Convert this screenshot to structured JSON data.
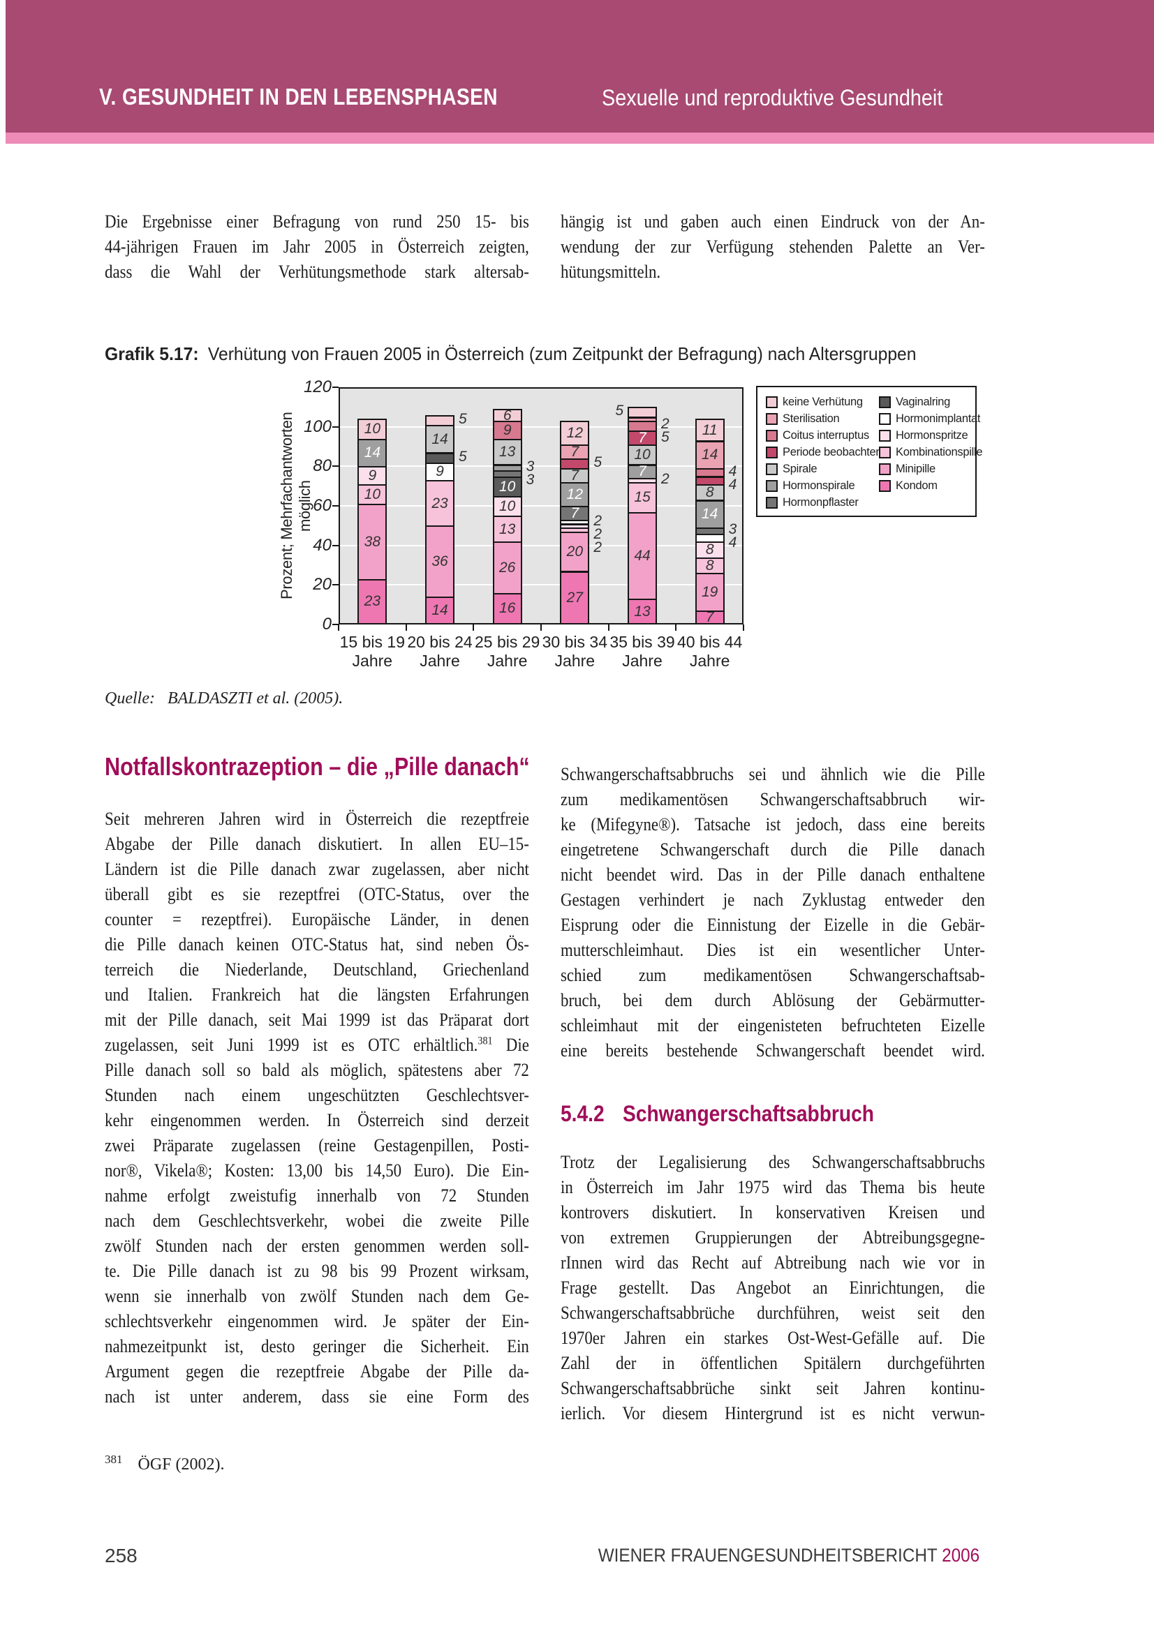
{
  "header": {
    "left": "V. GESUNDHEIT IN DEN LEBENSPHASEN",
    "right": "Sexuelle und reproduktive Gesundheit"
  },
  "colors": {
    "header_band": "#a84a72",
    "header_stripe": "#ee8cb7",
    "heading_magenta": "#a00e59",
    "plot_background": "#e4e4e4"
  },
  "intro": {
    "left_lines": [
      "Die Ergebnisse einer Befragung von rund 250 15- bis",
      "44-jährigen Frauen im Jahr 2005 in Österreich zeigten,",
      "dass die Wahl der Verhütungsmethode stark altersab-"
    ],
    "right_lines": [
      "hängig ist und gaben auch einen Eindruck von der An-",
      "wendung der zur Verfügung stehenden Palette an Ver-",
      "hütungsmitteln."
    ],
    "right_last_ragged": true
  },
  "figure": {
    "caption_label": "Grafik 5.17:",
    "caption_text": "Verhütung von Frauen 2005 in Österreich (zum Zeitpunkt der Befragung) nach Altersgruppen",
    "source_label": "Quelle:",
    "source_text": "BALDASZTI et al. (2005)."
  },
  "chart_data": {
    "type": "bar",
    "stacked": true,
    "title": "Verhütung von Frauen 2005 in Österreich (zum Zeitpunkt der Befragung) nach Altersgruppen",
    "ylabel": "Prozent; Mehrfachantworten möglich",
    "ylim": [
      0,
      120
    ],
    "yticks": [
      0,
      20,
      40,
      60,
      80,
      100,
      120
    ],
    "grid": true,
    "legend_position": "right-box",
    "x_labels": [
      {
        "line1": "15 bis 19",
        "line2": "Jahre"
      },
      {
        "line1": "20 bis 24",
        "line2": "Jahre"
      },
      {
        "line1": "25 bis 29",
        "line2": "Jahre"
      },
      {
        "line1": "30 bis 34",
        "line2": "Jahre"
      },
      {
        "line1": "35 bis 39",
        "line2": "Jahre"
      },
      {
        "line1": "40 bis 44",
        "line2": "Jahre"
      }
    ],
    "legend": [
      {
        "label": "keine Verhütung",
        "color": "#f3cdd5"
      },
      {
        "label": "Sterilisation",
        "color": "#e9a3b2"
      },
      {
        "label": "Coitus interruptus",
        "color": "#d7798f"
      },
      {
        "label": "Periode beobachten",
        "color": "#c2496b"
      },
      {
        "label": "Spirale",
        "color": "#c9c9c9"
      },
      {
        "label": "Hormonspirale",
        "color": "#9f9f9f"
      },
      {
        "label": "Hormonpflaster",
        "color": "#757575"
      },
      {
        "label": "Vaginalring",
        "color": "#5a5a5a"
      },
      {
        "label": "Hormonimplantat",
        "color": "#ffffff"
      },
      {
        "label": "Hormonspritze",
        "color": "#fbdfeb"
      },
      {
        "label": "Kombinationspille",
        "color": "#f7c3da"
      },
      {
        "label": "Minipille",
        "color": "#f2a2c8"
      },
      {
        "label": "Kondom",
        "color": "#ee77b2"
      }
    ],
    "bars": [
      {
        "age_group": "15 bis 19 Jahre",
        "segments": [
          {
            "category": "Kondom",
            "value": 23,
            "color": "#ee77b2",
            "label": "inside"
          },
          {
            "category": "Minipille",
            "value": 38,
            "color": "#f2a2c8",
            "label": "inside"
          },
          {
            "category": "Kombinationspille",
            "value": 10,
            "color": "#f7c3da",
            "label": "inside"
          },
          {
            "category": "Hormonspritze",
            "value": 9,
            "color": "#fbdfeb",
            "label": "inside"
          },
          {
            "category": "Hormonspirale",
            "value": 14,
            "color": "#9f9f9f",
            "label": "inside",
            "label_color": "#ffffff"
          },
          {
            "category": "keine Verhütung",
            "value": 10,
            "color": "#f3cdd5",
            "label": "inside"
          }
        ]
      },
      {
        "age_group": "20 bis 24 Jahre",
        "segments": [
          {
            "category": "Kondom",
            "value": 14,
            "color": "#ee77b2",
            "label": "inside"
          },
          {
            "category": "Minipille",
            "value": 36,
            "color": "#f2a2c8",
            "label": "inside"
          },
          {
            "category": "Kombinationspille",
            "value": 23,
            "color": "#f7c3da",
            "label": "inside"
          },
          {
            "category": "Hormonimplantat",
            "value": 9,
            "color": "#ffffff",
            "label": "inside"
          },
          {
            "category": "Vaginalring",
            "value": 5,
            "color": "#5a5a5a",
            "label": "right"
          },
          {
            "category": "Spirale",
            "value": 14,
            "color": "#c9c9c9",
            "label": "inside"
          },
          {
            "category": "keine Verhütung",
            "value": 5,
            "color": "#f3cdd5",
            "label": "right"
          }
        ]
      },
      {
        "age_group": "25 bis 29 Jahre",
        "segments": [
          {
            "category": "Kondom",
            "value": 16,
            "color": "#ee77b2",
            "label": "inside"
          },
          {
            "category": "Minipille",
            "value": 26,
            "color": "#f2a2c8",
            "label": "inside"
          },
          {
            "category": "Kombinationspille",
            "value": 13,
            "color": "#f7c3da",
            "label": "inside"
          },
          {
            "category": "Hormonspritze",
            "value": 10,
            "color": "#fbdfeb",
            "label": "inside"
          },
          {
            "category": "Vaginalring",
            "value": 10,
            "color": "#5a5a5a",
            "label": "inside",
            "label_color": "#ffffff"
          },
          {
            "category": "Hormonpflaster",
            "value": 3,
            "color": "#757575",
            "label": "right"
          },
          {
            "category": "Hormonspirale",
            "value": 3,
            "color": "#9f9f9f",
            "label": "right"
          },
          {
            "category": "Spirale",
            "value": 13,
            "color": "#c9c9c9",
            "label": "inside"
          },
          {
            "category": "Coitus interruptus",
            "value": 9,
            "color": "#d7798f",
            "label": "inside"
          },
          {
            "category": "keine Verhütung",
            "value": 6,
            "color": "#f3cdd5",
            "label": "inside"
          }
        ]
      },
      {
        "age_group": "30 bis 34 Jahre",
        "segments": [
          {
            "category": "Kondom",
            "value": 27,
            "color": "#ee77b2",
            "label": "inside"
          },
          {
            "category": "Minipille",
            "value": 20,
            "color": "#f2a2c8",
            "label": "inside"
          },
          {
            "category": "Kombinationspille",
            "value": 2,
            "color": "#f7c3da",
            "label": "right"
          },
          {
            "category": "Hormonspritze",
            "value": 2,
            "color": "#fbdfeb",
            "label": "right"
          },
          {
            "category": "Hormonimplantat",
            "value": 2,
            "color": "#ffffff",
            "label": "right"
          },
          {
            "category": "Hormonpflaster",
            "value": 7,
            "color": "#757575",
            "label": "inside",
            "label_color": "#ffffff"
          },
          {
            "category": "Hormonspirale",
            "value": 12,
            "color": "#9f9f9f",
            "label": "inside",
            "label_color": "#ffffff"
          },
          {
            "category": "Spirale",
            "value": 7,
            "color": "#c9c9c9",
            "label": "inside"
          },
          {
            "category": "Periode beobachten",
            "value": 5,
            "color": "#c2496b",
            "label": "right"
          },
          {
            "category": "Sterilisation",
            "value": 7,
            "color": "#e9a3b2",
            "label": "inside"
          },
          {
            "category": "keine Verhütung",
            "value": 12,
            "color": "#f3cdd5",
            "label": "inside"
          }
        ]
      },
      {
        "age_group": "35 bis 39 Jahre",
        "segments": [
          {
            "category": "Kondom",
            "value": 13,
            "color": "#ee77b2",
            "label": "inside"
          },
          {
            "category": "Minipille",
            "value": 44,
            "color": "#f2a2c8",
            "label": "inside"
          },
          {
            "category": "Kombinationspille",
            "value": 15,
            "color": "#f7c3da",
            "label": "inside"
          },
          {
            "category": "Hormonspritze",
            "value": 2,
            "color": "#fbdfeb",
            "label": "right"
          },
          {
            "category": "Hormonspirale",
            "value": 7,
            "color": "#9f9f9f",
            "label": "inside",
            "label_color": "#ffffff"
          },
          {
            "category": "Spirale",
            "value": 10,
            "color": "#c9c9c9",
            "label": "inside"
          },
          {
            "category": "Periode beobachten",
            "value": 7,
            "color": "#c2496b",
            "label": "inside",
            "label_color": "#ffffff"
          },
          {
            "category": "Coitus interruptus",
            "value": 5,
            "color": "#d7798f",
            "label": "right"
          },
          {
            "category": "Sterilisation",
            "value": 2,
            "color": "#e9a3b2",
            "label": "right"
          },
          {
            "category": "keine Verhütung",
            "value": 5,
            "color": "#f3cdd5",
            "label": "left"
          }
        ]
      },
      {
        "age_group": "40 bis 44 Jahre",
        "segments": [
          {
            "category": "Kondom",
            "value": 7,
            "color": "#ee77b2",
            "label": "inside"
          },
          {
            "category": "Minipille",
            "value": 19,
            "color": "#f2a2c8",
            "label": "inside"
          },
          {
            "category": "Kombinationspille",
            "value": 8,
            "color": "#f7c3da",
            "label": "inside"
          },
          {
            "category": "Hormonspritze",
            "value": 8,
            "color": "#fbdfeb",
            "label": "inside"
          },
          {
            "category": "Hormonimplantat",
            "value": 4,
            "color": "#ffffff",
            "label": "right"
          },
          {
            "category": "Hormonpflaster",
            "value": 3,
            "color": "#757575",
            "label": "right"
          },
          {
            "category": "Hormonspirale",
            "value": 14,
            "color": "#9f9f9f",
            "label": "inside",
            "label_color": "#ffffff"
          },
          {
            "category": "Spirale",
            "value": 8,
            "color": "#c9c9c9",
            "label": "inside"
          },
          {
            "category": "Periode beobachten",
            "value": 4,
            "color": "#c2496b",
            "label": "right"
          },
          {
            "category": "Coitus interruptus",
            "value": 4,
            "color": "#d7798f",
            "label": "right"
          },
          {
            "category": "Sterilisation",
            "value": 14,
            "color": "#e9a3b2",
            "label": "inside"
          },
          {
            "category": "keine Verhütung",
            "value": 11,
            "color": "#f3cdd5",
            "label": "inside"
          }
        ]
      }
    ]
  },
  "sections": {
    "notfall": {
      "heading": "Notfallskontrazeption – die „Pille danach“",
      "left_lines": [
        "Seit mehreren Jahren wird in Österreich die rezeptfreie",
        "Abgabe der Pille danach diskutiert. In allen EU–15-",
        "Ländern ist die Pille danach zwar zugelassen, aber nicht",
        "überall gibt es sie rezeptfrei (OTC-Status, over the",
        "counter = rezeptfrei). Europäische Länder, in denen",
        "die Pille danach keinen OTC-Status hat, sind neben Ös-",
        "terreich die Niederlande, Deutschland, Griechenland",
        "und Italien. Frankreich hat die längsten Erfahrungen",
        "mit der Pille danach, seit Mai 1999 ist das Präparat dort",
        "zugelassen, seit Juni 1999 ist es OTC erhältlich.[381] Die",
        "Pille danach soll so bald als möglich, spätestens aber 72",
        "Stunden nach einem ungeschützten Geschlechtsver-",
        "kehr eingenommen werden. In Österreich sind derzeit",
        "zwei Präparate zugelassen (reine Gestagenpillen, Posti-",
        "nor®, Vikela®; Kosten: 13,00 bis 14,50 Euro). Die Ein-",
        "nahme erfolgt zweistufig innerhalb von 72 Stunden",
        "nach dem Geschlechtsverkehr, wobei die zweite Pille",
        "zwölf Stunden nach der ersten genommen werden soll-",
        "te. Die Pille danach ist zu 98 bis 99 Prozent wirksam,",
        "wenn sie innerhalb von zwölf Stunden nach dem Ge-",
        "schlechtsverkehr eingenommen wird. Je später der Ein-",
        "nahmezeitpunkt ist, desto geringer die Sicherheit. Ein",
        "Argument gegen die rezeptfreie Abgabe der Pille da-",
        "nach ist unter anderem, dass sie eine Form des"
      ],
      "right_lines": [
        "Schwangerschaftsabbruchs sei und ähnlich wie die Pille",
        "zum medikamentösen Schwangerschaftsabbruch wir-",
        "ke (Mifegyne®). Tatsache ist jedoch, dass eine bereits",
        "eingetretene Schwangerschaft durch die Pille danach",
        "nicht beendet wird. Das in der Pille danach enthaltene",
        "Gestagen verhindert je nach Zyklustag entweder den",
        "Eisprung oder die Einnistung der Eizelle in die Gebär-",
        "mutterschleimhaut. Dies ist ein wesentlicher Unter-",
        "schied zum medikamentösen Schwangerschaftsab-",
        "bruch, bei dem durch Ablösung der Gebärmutter-",
        "schleimhaut mit der eingenisteten befruchteten Eizelle",
        "eine bereits bestehende Schwangerschaft beendet wird."
      ]
    },
    "abbruch": {
      "number": "5.4.2",
      "title": "Schwangerschaftsabbruch",
      "lines": [
        "Trotz der Legalisierung des Schwangerschaftsabbruchs",
        "in Österreich im Jahr 1975 wird das Thema bis heute",
        "kontrovers diskutiert. In konservativen Kreisen und",
        "von extremen Gruppierungen der Abtreibungsgegne-",
        "rInnen wird das Recht auf Abtreibung nach wie vor in",
        "Frage gestellt. Das Angebot an Einrichtungen, die",
        "Schwangerschaftsabbrüche durchführen, weist seit den",
        "1970er Jahren ein starkes Ost-West-Gefälle auf. Die",
        "Zahl der in öffentlichen Spitälern durchgeführten",
        "Schwangerschaftsabbrüche sinkt seit Jahren kontinu-",
        "ierlich. Vor diesem Hintergrund ist es nicht verwun-"
      ]
    }
  },
  "footnote": {
    "marker": "381",
    "text": "ÖGF (2002)."
  },
  "footer": {
    "page_number": "258",
    "right_title": "WIENER FRAUENGESUNDHEITSBERICHT",
    "right_year": "2006"
  }
}
